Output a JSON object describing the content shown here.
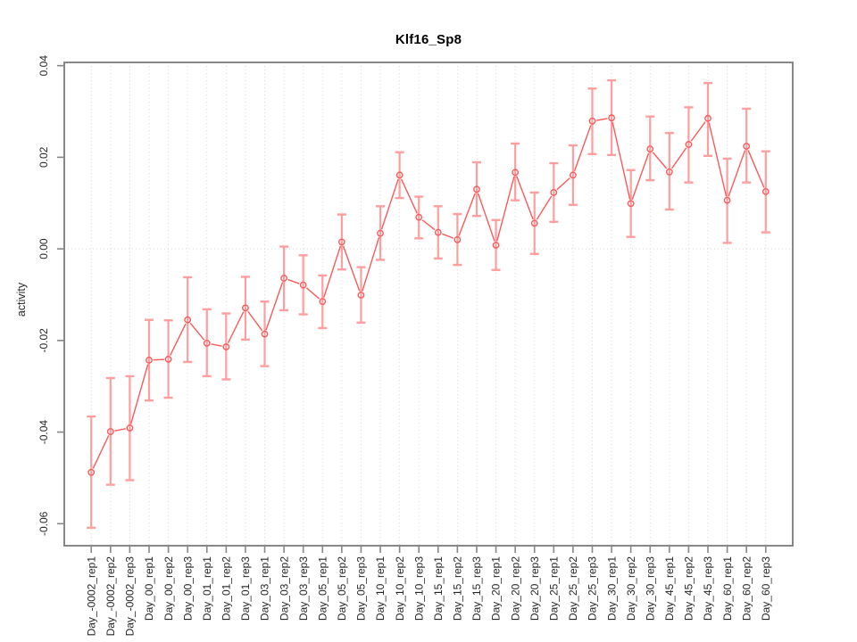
{
  "chart_data": {
    "type": "line",
    "title": "Klf16_Sp8",
    "xlabel": "",
    "ylabel": "activity",
    "legend": "none",
    "marker": "open-circle",
    "error_bars": true,
    "grid": {
      "vertical_per_category": true,
      "horizontal_at_zero": true,
      "style": "dotted"
    },
    "x_tick_rotation": 90,
    "y_tick_rotation": 90,
    "ylim": [
      -0.06,
      0.04
    ],
    "yticks": [
      0.04,
      0.02,
      0.0,
      -0.02,
      -0.04,
      -0.06
    ],
    "ytick_labels": [
      "0.04",
      "0.02",
      "0.00",
      "-0.02",
      "-0.04",
      "-0.06"
    ],
    "categories": [
      "Day_-0002_rep1",
      "Day_-0002_rep2",
      "Day_-0002_rep3",
      "Day_00_rep1",
      "Day_00_rep2",
      "Day_00_rep3",
      "Day_01_rep1",
      "Day_01_rep2",
      "Day_01_rep3",
      "Day_03_rep1",
      "Day_03_rep2",
      "Day_03_rep3",
      "Day_05_rep1",
      "Day_05_rep2",
      "Day_05_rep3",
      "Day_10_rep1",
      "Day_10_rep2",
      "Day_10_rep3",
      "Day_15_rep1",
      "Day_15_rep2",
      "Day_15_rep3",
      "Day_20_rep1",
      "Day_20_rep2",
      "Day_20_rep3",
      "Day_25_rep1",
      "Day_25_rep2",
      "Day_25_rep3",
      "Day_30_rep1",
      "Day_30_rep2",
      "Day_30_rep3",
      "Day_45_rep1",
      "Day_45_rep2",
      "Day_45_rep3",
      "Day_60_rep1",
      "Day_60_rep2",
      "Day_60_rep3"
    ],
    "series": [
      {
        "name": "activity",
        "values": [
          -0.0488,
          -0.0399,
          -0.0391,
          -0.0243,
          -0.0241,
          -0.0155,
          -0.0206,
          -0.0214,
          -0.0129,
          -0.0186,
          -0.0064,
          -0.0079,
          -0.0115,
          0.0015,
          -0.0101,
          0.0034,
          0.0161,
          0.0069,
          0.0036,
          0.002,
          0.013,
          0.0008,
          0.0167,
          0.0056,
          0.0123,
          0.0161,
          0.0279,
          0.0286,
          0.0099,
          0.0218,
          0.0168,
          0.0228,
          0.0285,
          0.0106,
          0.0224,
          0.0125
        ],
        "upper": [
          -0.0366,
          -0.0282,
          -0.0278,
          -0.0155,
          -0.0156,
          -0.0062,
          -0.0132,
          -0.0141,
          -0.0061,
          -0.0115,
          0.0005,
          -0.0014,
          -0.0058,
          0.0075,
          -0.004,
          0.0093,
          0.0211,
          0.0114,
          0.0093,
          0.0076,
          0.0189,
          0.0063,
          0.023,
          0.0123,
          0.0187,
          0.0226,
          0.035,
          0.0368,
          0.0172,
          0.0289,
          0.0253,
          0.0309,
          0.0362,
          0.0197,
          0.0306,
          0.0213
        ],
        "lower": [
          -0.0609,
          -0.0515,
          -0.0505,
          -0.0331,
          -0.0325,
          -0.0247,
          -0.0278,
          -0.0285,
          -0.0198,
          -0.0256,
          -0.0134,
          -0.0143,
          -0.0173,
          -0.0045,
          -0.0161,
          -0.0024,
          0.0111,
          0.0023,
          -0.0021,
          -0.0035,
          0.0072,
          -0.0046,
          0.0106,
          -0.0011,
          0.0059,
          0.0096,
          0.0207,
          0.0205,
          0.0026,
          0.015,
          0.0086,
          0.0145,
          0.0203,
          0.0013,
          0.0145,
          0.0036
        ]
      }
    ],
    "colors": {
      "line": "#fa5a5a",
      "error_bar": "#ff9e9e",
      "grid": "#d9d9d9",
      "axis": "#878787",
      "tick_text": "#262626",
      "background": "#ffffff"
    }
  }
}
